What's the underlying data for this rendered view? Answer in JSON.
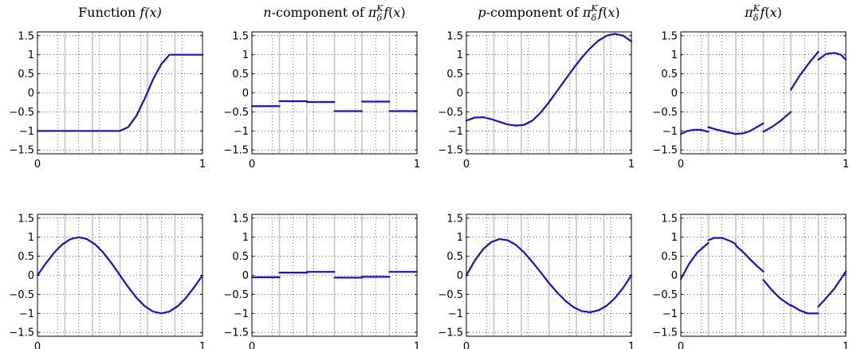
{
  "chart_data": {
    "type": "line",
    "grid": "dotted",
    "line_color": "#1010e0",
    "divider_color": "#c4c4c4",
    "partition_breaks": [
      0.1667,
      0.3333,
      0.5,
      0.6667,
      0.8333
    ],
    "xlim": [
      0,
      1
    ],
    "ylim": [
      -1.6,
      1.6
    ],
    "xticks": [
      {
        "v": 0,
        "label": "0"
      },
      {
        "v": 1,
        "label": "1"
      }
    ],
    "yticks": [
      {
        "v": 1.5,
        "label": "1.5"
      },
      {
        "v": 1,
        "label": "1"
      },
      {
        "v": 0.5,
        "label": "0.5"
      },
      {
        "v": 0,
        "label": "0"
      },
      {
        "v": -0.5,
        "label": "−0.5"
      },
      {
        "v": -1,
        "label": "−1"
      },
      {
        "v": -1.5,
        "label": "−1.5"
      }
    ],
    "column_titles": [
      {
        "pre": "Function ",
        "math": "f(x)"
      },
      {
        "pre": "",
        "math": "n",
        "post": "-component of ",
        "pi": true
      },
      {
        "pre": "",
        "math": "p",
        "post": "-component of ",
        "pi": true
      },
      {
        "pre": "",
        "pi": true
      }
    ],
    "rows": [
      {
        "function": {
          "name": "smooth step",
          "points": [
            [
              0,
              -1
            ],
            [
              0.1,
              -1
            ],
            [
              0.2,
              -1
            ],
            [
              0.3,
              -1
            ],
            [
              0.4,
              -1
            ],
            [
              0.5,
              -1
            ],
            [
              0.55,
              -0.9
            ],
            [
              0.6,
              -0.6
            ],
            [
              0.65,
              -0.15
            ],
            [
              0.7,
              0.35
            ],
            [
              0.75,
              0.75
            ],
            [
              0.8,
              1.0
            ],
            [
              0.85,
              1.0
            ],
            [
              0.9,
              1.0
            ],
            [
              0.95,
              1.0
            ],
            [
              1,
              1.0
            ]
          ]
        },
        "n_component": {
          "segments": [
            {
              "x": [
                0,
                0.1667
              ],
              "y": -0.35
            },
            {
              "x": [
                0.1667,
                0.3333
              ],
              "y": -0.22
            },
            {
              "x": [
                0.3333,
                0.5
              ],
              "y": -0.24
            },
            {
              "x": [
                0.5,
                0.6667
              ],
              "y": -0.48
            },
            {
              "x": [
                0.6667,
                0.8333
              ],
              "y": -0.23
            },
            {
              "x": [
                0.8333,
                1
              ],
              "y": -0.48
            }
          ]
        },
        "p_component": {
          "points": [
            [
              0,
              -0.73
            ],
            [
              0.05,
              -0.65
            ],
            [
              0.1,
              -0.64
            ],
            [
              0.15,
              -0.69
            ],
            [
              0.2,
              -0.76
            ],
            [
              0.25,
              -0.83
            ],
            [
              0.3,
              -0.86
            ],
            [
              0.35,
              -0.84
            ],
            [
              0.4,
              -0.73
            ],
            [
              0.45,
              -0.52
            ],
            [
              0.5,
              -0.25
            ],
            [
              0.55,
              0.05
            ],
            [
              0.6,
              0.35
            ],
            [
              0.65,
              0.65
            ],
            [
              0.7,
              0.93
            ],
            [
              0.75,
              1.17
            ],
            [
              0.8,
              1.37
            ],
            [
              0.85,
              1.5
            ],
            [
              0.9,
              1.55
            ],
            [
              0.95,
              1.5
            ],
            [
              1,
              1.35
            ]
          ]
        },
        "projection": {
          "segments": [
            [
              [
                0,
                -1.08
              ],
              [
                0.04,
                -1.0
              ],
              [
                0.08,
                -0.97
              ],
              [
                0.12,
                -0.97
              ],
              [
                0.1667,
                -1.02
              ]
            ],
            [
              [
                0.1667,
                -0.9
              ],
              [
                0.22,
                -0.97
              ],
              [
                0.28,
                -1.03
              ],
              [
                0.3333,
                -1.08
              ]
            ],
            [
              [
                0.3333,
                -1.08
              ],
              [
                0.38,
                -1.06
              ],
              [
                0.42,
                -1.0
              ],
              [
                0.46,
                -0.9
              ],
              [
                0.5,
                -0.8
              ]
            ],
            [
              [
                0.5,
                -1.02
              ],
              [
                0.55,
                -0.9
              ],
              [
                0.6,
                -0.75
              ],
              [
                0.6667,
                -0.5
              ]
            ],
            [
              [
                0.6667,
                0.08
              ],
              [
                0.72,
                0.45
              ],
              [
                0.78,
                0.8
              ],
              [
                0.8333,
                1.08
              ]
            ],
            [
              [
                0.8333,
                0.87
              ],
              [
                0.88,
                1.02
              ],
              [
                0.93,
                1.05
              ],
              [
                0.97,
                1.0
              ],
              [
                1,
                0.87
              ]
            ]
          ]
        }
      },
      {
        "function": {
          "name": "sine",
          "points": [
            [
              0,
              0
            ],
            [
              0.05,
              0.31
            ],
            [
              0.1,
              0.59
            ],
            [
              0.15,
              0.81
            ],
            [
              0.2,
              0.95
            ],
            [
              0.25,
              1.0
            ],
            [
              0.3,
              0.95
            ],
            [
              0.35,
              0.81
            ],
            [
              0.4,
              0.59
            ],
            [
              0.45,
              0.31
            ],
            [
              0.5,
              0
            ],
            [
              0.55,
              -0.31
            ],
            [
              0.6,
              -0.59
            ],
            [
              0.65,
              -0.81
            ],
            [
              0.7,
              -0.95
            ],
            [
              0.75,
              -1.0
            ],
            [
              0.8,
              -0.95
            ],
            [
              0.85,
              -0.81
            ],
            [
              0.9,
              -0.59
            ],
            [
              0.95,
              -0.31
            ],
            [
              1,
              0
            ]
          ]
        },
        "n_component": {
          "segments": [
            {
              "x": [
                0,
                0.1667
              ],
              "y": -0.05
            },
            {
              "x": [
                0.1667,
                0.3333
              ],
              "y": 0.07
            },
            {
              "x": [
                0.3333,
                0.5
              ],
              "y": 0.09
            },
            {
              "x": [
                0.5,
                0.6667
              ],
              "y": -0.06
            },
            {
              "x": [
                0.6667,
                0.8333
              ],
              "y": -0.04
            },
            {
              "x": [
                0.8333,
                1
              ],
              "y": 0.09
            }
          ]
        },
        "p_component": {
          "points": [
            [
              0,
              0
            ],
            [
              0.05,
              0.38
            ],
            [
              0.1,
              0.68
            ],
            [
              0.15,
              0.87
            ],
            [
              0.2,
              0.95
            ],
            [
              0.25,
              0.92
            ],
            [
              0.3,
              0.8
            ],
            [
              0.35,
              0.6
            ],
            [
              0.4,
              0.35
            ],
            [
              0.45,
              0.08
            ],
            [
              0.5,
              -0.2
            ],
            [
              0.55,
              -0.45
            ],
            [
              0.6,
              -0.67
            ],
            [
              0.65,
              -0.84
            ],
            [
              0.7,
              -0.94
            ],
            [
              0.75,
              -0.97
            ],
            [
              0.8,
              -0.92
            ],
            [
              0.85,
              -0.8
            ],
            [
              0.9,
              -0.6
            ],
            [
              0.95,
              -0.33
            ],
            [
              1,
              0
            ]
          ]
        },
        "projection": {
          "segments": [
            [
              [
                0,
                -0.1
              ],
              [
                0.05,
                0.3
              ],
              [
                0.1,
                0.6
              ],
              [
                0.1667,
                0.85
              ]
            ],
            [
              [
                0.1667,
                0.92
              ],
              [
                0.2,
                0.98
              ],
              [
                0.25,
                0.98
              ],
              [
                0.3,
                0.9
              ],
              [
                0.3333,
                0.82
              ]
            ],
            [
              [
                0.3333,
                0.78
              ],
              [
                0.38,
                0.6
              ],
              [
                0.42,
                0.42
              ],
              [
                0.46,
                0.25
              ],
              [
                0.5,
                0.1
              ]
            ],
            [
              [
                0.5,
                -0.12
              ],
              [
                0.55,
                -0.38
              ],
              [
                0.6,
                -0.6
              ],
              [
                0.6667,
                -0.8
              ]
            ],
            [
              [
                0.6667,
                -0.78
              ],
              [
                0.72,
                -0.92
              ],
              [
                0.77,
                -1.0
              ],
              [
                0.8333,
                -1.0
              ]
            ],
            [
              [
                0.8333,
                -0.82
              ],
              [
                0.88,
                -0.6
              ],
              [
                0.93,
                -0.35
              ],
              [
                1,
                0.1
              ]
            ]
          ]
        }
      }
    ]
  }
}
